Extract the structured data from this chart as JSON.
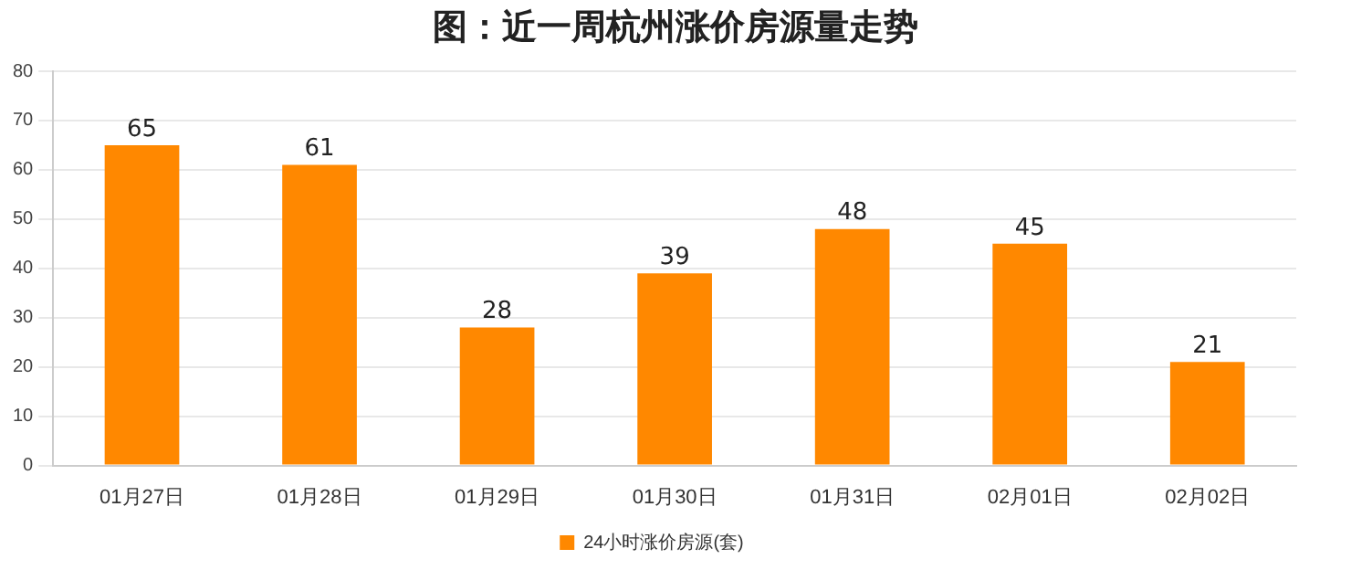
{
  "chart_data": {
    "type": "bar",
    "title": "图：近一周杭州涨价房源量走势",
    "categories": [
      "01月27日",
      "01月28日",
      "01月29日",
      "01月30日",
      "01月31日",
      "02月01日",
      "02月02日"
    ],
    "series": [
      {
        "name": "24小时涨价房源(套)",
        "color": "#ff8800",
        "values": [
          65,
          61,
          28,
          39,
          48,
          45,
          21
        ]
      }
    ],
    "ylim": [
      0,
      80
    ],
    "yticks": [
      0,
      10,
      20,
      30,
      40,
      50,
      60,
      70,
      80
    ],
    "grid": "y",
    "legend": "bottom",
    "data_labels": true
  }
}
